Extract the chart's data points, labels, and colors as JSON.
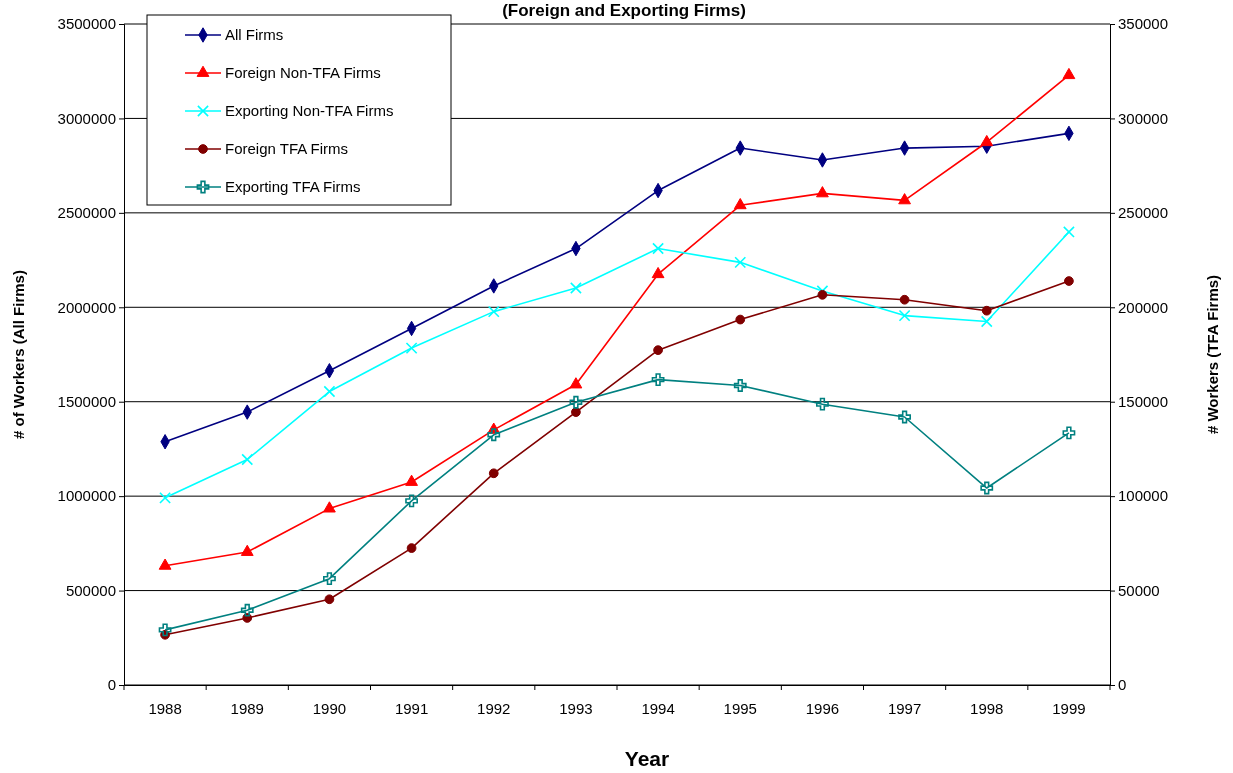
{
  "chart_data": {
    "type": "line",
    "title": "(Foreign and Exporting Firms)",
    "xlabel": "Year",
    "ylabel": "# of Workers (All Firms)",
    "y2label": "# Workers (TFA Firms)",
    "categories": [
      "1988",
      "1989",
      "1990",
      "1991",
      "1992",
      "1993",
      "1994",
      "1995",
      "1996",
      "1997",
      "1998",
      "1999"
    ],
    "ylim": [
      0,
      3500000
    ],
    "yticks": [
      0,
      500000,
      1000000,
      1500000,
      2000000,
      2500000,
      3000000,
      3500000
    ],
    "y2lim": [
      0,
      350000
    ],
    "y2ticks": [
      0,
      50000,
      100000,
      150000,
      200000,
      250000,
      300000,
      350000
    ],
    "grid": "y",
    "legend": "top left",
    "line_style": "solid",
    "series": [
      {
        "name": "All Firms",
        "color": "#000080",
        "marker": "diamond",
        "values": [
          1288000,
          1445000,
          1664000,
          1888000,
          2113000,
          2311000,
          2618000,
          2843000,
          2780000,
          2843000,
          2853000,
          2921000
        ]
      },
      {
        "name": "Foreign Non-TFA Firms",
        "color": "#ff0000",
        "marker": "triangle",
        "values": [
          631000,
          704000,
          934000,
          1075000,
          1351000,
          1591000,
          2175000,
          2540000,
          2603000,
          2566000,
          2874000,
          3229000
        ]
      },
      {
        "name": "Exporting Non-TFA Firms",
        "color": "#00ffff",
        "marker": "cross",
        "values": [
          991000,
          1194000,
          1554000,
          1784000,
          1977000,
          2102000,
          2311000,
          2238000,
          2086000,
          1956000,
          1925000,
          2399000
        ]
      },
      {
        "name": "Foreign TFA Firms",
        "color": "#800000",
        "marker": "circle",
        "axis": "y2",
        "values": [
          26600,
          35500,
          45400,
          72500,
          112100,
          144500,
          177300,
          193500,
          206600,
          204000,
          198200,
          213900
        ]
      },
      {
        "name": "Exporting TFA Firms",
        "color": "#008080",
        "marker": "plus",
        "axis": "y2",
        "values": [
          29200,
          39600,
          56300,
          97500,
          132500,
          149700,
          161700,
          158600,
          148700,
          141900,
          104300,
          133500
        ]
      }
    ]
  }
}
